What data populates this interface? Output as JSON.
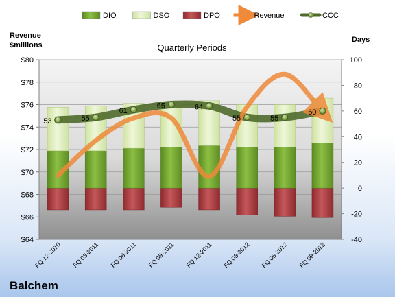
{
  "chart_data": {
    "type": "bar",
    "title": "Quarterly Periods",
    "company": "Balchem",
    "left_axis_label_line1": "Revenue",
    "left_axis_label_line2": "$millions",
    "right_axis_label": "Days",
    "categories": [
      "FQ 12-2010",
      "FQ 03-2011",
      "FQ 06-2011",
      "FQ 09-2011",
      "FQ 12-2011",
      "FQ 03-2012",
      "FQ 06-2012",
      "FQ 09-2012"
    ],
    "series": [
      {
        "name": "DIO",
        "type": "stacked-bar",
        "axis": "right",
        "values": [
          29,
          29,
          31,
          32,
          33,
          32,
          32,
          35
        ],
        "color": "#6f9e2e"
      },
      {
        "name": "DSO",
        "type": "stacked-bar",
        "axis": "right",
        "values": [
          34,
          35,
          35,
          35,
          35,
          33,
          33,
          35
        ],
        "color": "#e0efbf"
      },
      {
        "name": "DPO",
        "type": "negative-bar",
        "axis": "right",
        "values": [
          -17,
          -17,
          -17,
          -15,
          -17,
          -21,
          -22,
          -23
        ],
        "color": "#a93a3e"
      },
      {
        "name": "Revenue",
        "type": "line",
        "axis": "left",
        "values": [
          69.7,
          72.8,
          74.8,
          74.8,
          69.6,
          75.8,
          78.7,
          75.3
        ],
        "color": "#ee8a3a"
      },
      {
        "name": "CCC",
        "type": "line",
        "axis": "right",
        "values": [
          53,
          55,
          61,
          65,
          64,
          55,
          55,
          60
        ],
        "color": "#4f6a2b"
      }
    ],
    "left_axis": {
      "min": 64,
      "max": 80,
      "step": 2,
      "tick_labels": [
        "$64",
        "$66",
        "$68",
        "$70",
        "$72",
        "$74",
        "$76",
        "$78",
        "$80"
      ]
    },
    "right_axis": {
      "min": -40,
      "max": 100,
      "step": 20,
      "tick_labels": [
        "-40",
        "-20",
        "0",
        "20",
        "40",
        "60",
        "80",
        "100"
      ]
    },
    "legend": [
      "DIO",
      "DSO",
      "DPO",
      "Revenue",
      "CCC"
    ],
    "legend_position": "top",
    "grid": true
  }
}
